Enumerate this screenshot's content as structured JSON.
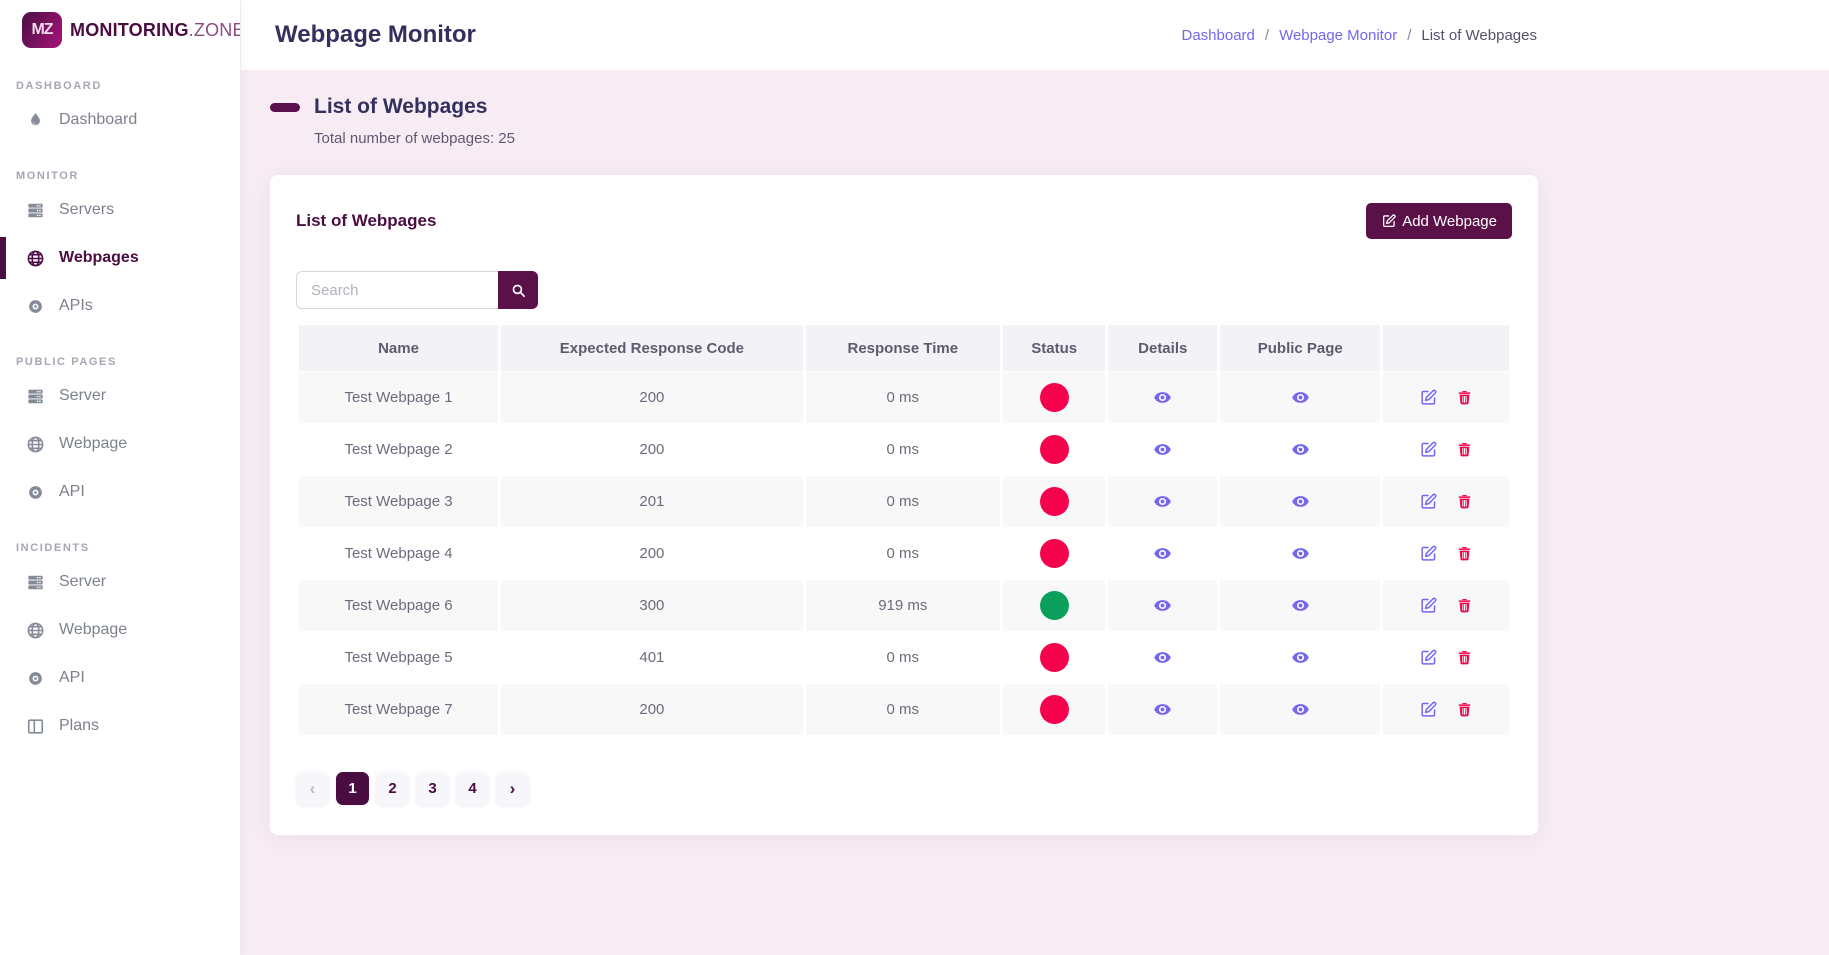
{
  "brand": {
    "badge": "MZ",
    "name": "MONITORING",
    "suffix": ".ZONE"
  },
  "sidebar": {
    "sections": [
      {
        "label": "DASHBOARD",
        "items": [
          {
            "label": "Dashboard",
            "icon": "flame-icon",
            "active": false
          }
        ]
      },
      {
        "label": "MONITOR",
        "items": [
          {
            "label": "Servers",
            "icon": "server-icon",
            "active": false
          },
          {
            "label": "Webpages",
            "icon": "globe-icon",
            "active": true
          },
          {
            "label": "APIs",
            "icon": "circle-dot-icon",
            "active": false
          }
        ]
      },
      {
        "label": "PUBLIC PAGES",
        "items": [
          {
            "label": "Server",
            "icon": "server-icon",
            "active": false
          },
          {
            "label": "Webpage",
            "icon": "globe-icon",
            "active": false
          },
          {
            "label": "API",
            "icon": "circle-dot-icon",
            "active": false
          }
        ]
      },
      {
        "label": "INCIDENTS",
        "items": [
          {
            "label": "Server",
            "icon": "server-icon",
            "active": false
          },
          {
            "label": "Webpage",
            "icon": "globe-icon",
            "active": false
          },
          {
            "label": "API",
            "icon": "circle-dot-icon",
            "active": false
          },
          {
            "label": "Plans",
            "icon": "columns-icon",
            "active": false
          }
        ]
      }
    ]
  },
  "header": {
    "title": "Webpage Monitor",
    "separator": "/",
    "breadcrumb": [
      {
        "label": "Dashboard",
        "link": true
      },
      {
        "label": "Webpage Monitor",
        "link": true
      },
      {
        "label": "List of Webpages",
        "link": false
      }
    ]
  },
  "page": {
    "heading": "List of Webpages",
    "subheading": "Total number of webpages: 25"
  },
  "panel": {
    "title": "List of Webpages",
    "add_button_label": "Add Webpage",
    "search_placeholder": "Search"
  },
  "table": {
    "columns": [
      "Name",
      "Expected Response Code",
      "Response Time",
      "Status",
      "Details",
      "Public Page",
      ""
    ],
    "rows": [
      {
        "name": "Test Webpage 1",
        "expected_code": "200",
        "response_time": "0 ms",
        "status": "down"
      },
      {
        "name": "Test Webpage 2",
        "expected_code": "200",
        "response_time": "0 ms",
        "status": "down"
      },
      {
        "name": "Test Webpage 3",
        "expected_code": "201",
        "response_time": "0 ms",
        "status": "down"
      },
      {
        "name": "Test Webpage 4",
        "expected_code": "200",
        "response_time": "0 ms",
        "status": "down"
      },
      {
        "name": "Test Webpage 6",
        "expected_code": "300",
        "response_time": "919 ms",
        "status": "up"
      },
      {
        "name": "Test Webpage 5",
        "expected_code": "401",
        "response_time": "0 ms",
        "status": "down"
      },
      {
        "name": "Test Webpage 7",
        "expected_code": "200",
        "response_time": "0 ms",
        "status": "down"
      }
    ]
  },
  "pagination": {
    "prev": "‹",
    "pages": [
      "1",
      "2",
      "3",
      "4"
    ],
    "active_page": "1",
    "next": "›"
  },
  "colors": {
    "accent": "#4a0d42",
    "button": "#5a1148",
    "status_up": "#0aa05c",
    "status_down": "#f4024c",
    "link": "#7367f0",
    "content_bg": "#f8ecf4"
  }
}
